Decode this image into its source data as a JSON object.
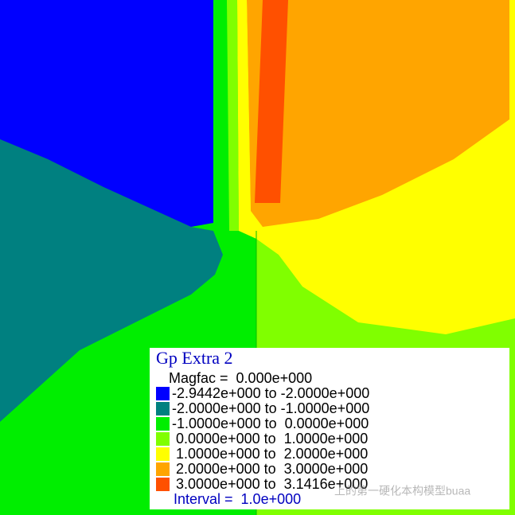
{
  "legend": {
    "title": "Gp Extra 2",
    "magfac": "Magfac =  0.000e+000",
    "entries": [
      {
        "label": "-2.9442e+000 to -2.0000e+000",
        "color": "#0000ff"
      },
      {
        "label": "-2.0000e+000 to -1.0000e+000",
        "color": "#008080"
      },
      {
        "label": "-1.0000e+000 to  0.0000e+000",
        "color": "#00ee00"
      },
      {
        "label": " 0.0000e+000 to  1.0000e+000",
        "color": "#80ff00"
      },
      {
        "label": " 1.0000e+000 to  2.0000e+000",
        "color": "#ffff00"
      },
      {
        "label": " 2.0000e+000 to  3.0000e+000",
        "color": "#ffa500"
      },
      {
        "label": " 3.0000e+000 to  3.1416e+000",
        "color": "#ff5000"
      }
    ],
    "interval": "Interval =  1.0e+000"
  },
  "watermark": "上的第一硬化本构模型buaa"
}
